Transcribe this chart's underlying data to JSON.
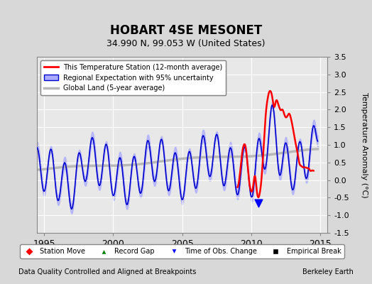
{
  "title": "HOBART 4SE MESONET",
  "subtitle": "34.990 N, 99.053 W (United States)",
  "ylabel": "Temperature Anomaly (°C)",
  "xlabel_left": "Data Quality Controlled and Aligned at Breakpoints",
  "xlabel_right": "Berkeley Earth",
  "xlim": [
    1994.5,
    2015.5
  ],
  "ylim": [
    -1.5,
    3.5
  ],
  "yticks": [
    -1.5,
    -1.0,
    -0.5,
    0.0,
    0.5,
    1.0,
    1.5,
    2.0,
    2.5,
    3.0,
    3.5
  ],
  "xticks": [
    1995,
    2000,
    2005,
    2010,
    2015
  ],
  "bg_color": "#e8e8e8",
  "grid_color": "#ffffff",
  "station_line_color": "#ff0000",
  "regional_line_color": "#0000cc",
  "regional_fill_color": "#aaaaff",
  "global_line_color": "#b0b0b0",
  "legend1_entries": [
    "This Temperature Station (12-month average)",
    "Regional Expectation with 95% uncertainty",
    "Global Land (5-year average)"
  ],
  "legend2_entries": [
    "Station Move",
    "Record Gap",
    "Time of Obs. Change",
    "Empirical Break"
  ]
}
